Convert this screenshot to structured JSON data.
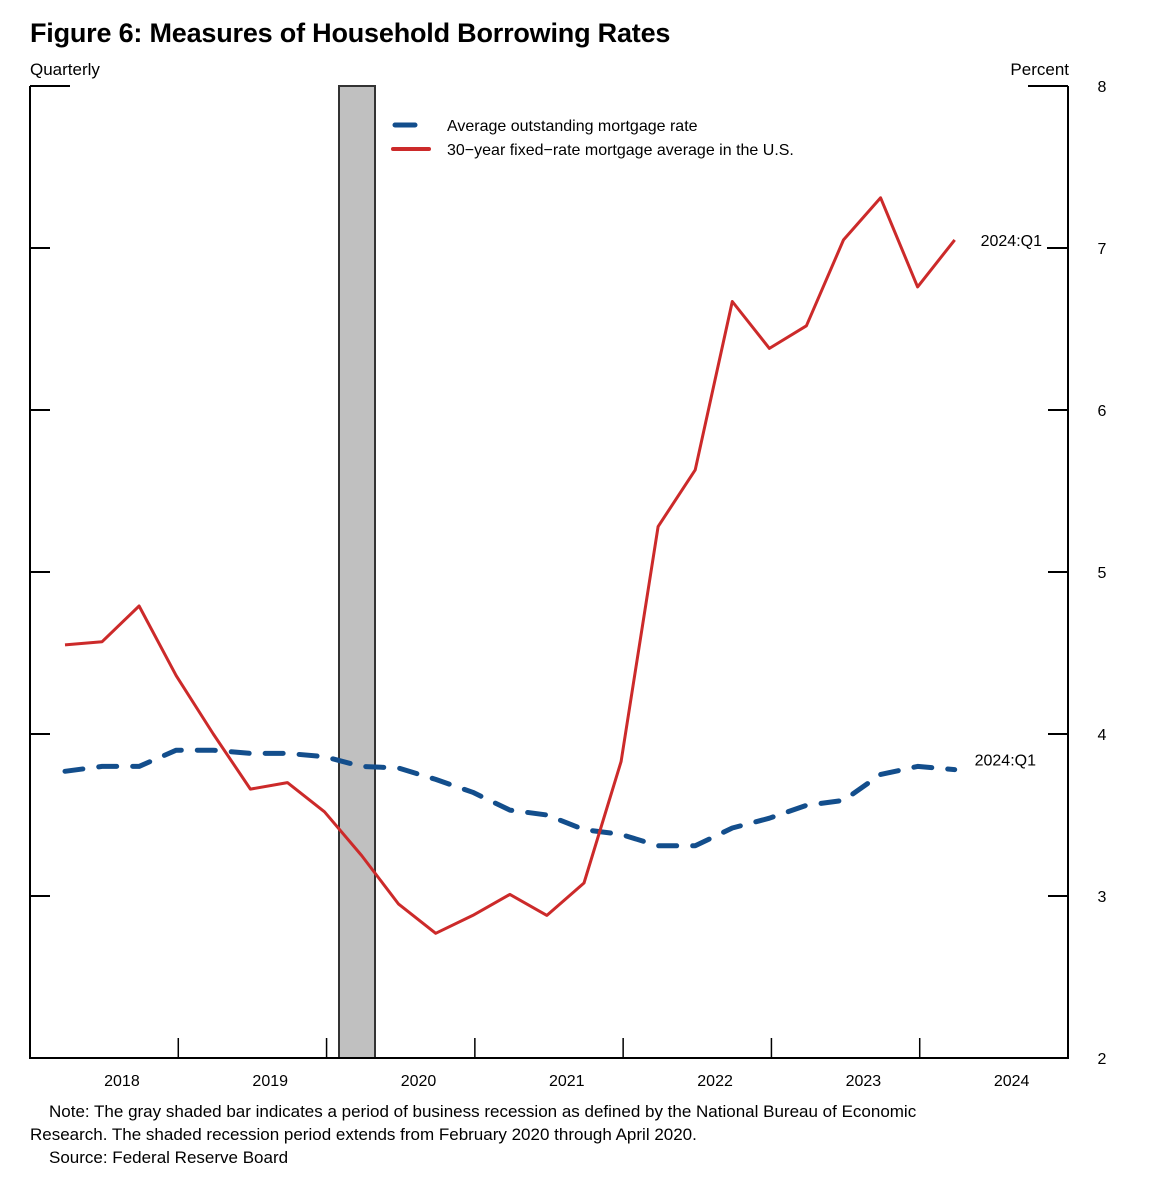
{
  "title": "Figure 6: Measures of Household Borrowing Rates",
  "frequency_label": "Quarterly",
  "unit_label": "Percent",
  "note_line1": "Note: The gray shaded bar indicates a period of business recession as defined by the National Bureau of Economic",
  "note_line2": "Research. The shaded recession period extends from February 2020 through April 2020.",
  "source": "Source: Federal Reserve Board",
  "chart_data": {
    "type": "line",
    "title": "Figure 6: Measures of Household Borrowing Rates",
    "xlabel": "",
    "ylabel": "Percent",
    "ylim": [
      2,
      8
    ],
    "y_ticks": [
      2,
      3,
      4,
      5,
      6,
      7,
      8
    ],
    "y_tick_labels": [
      "2",
      "3",
      "4",
      "5",
      "6",
      "7",
      "8"
    ],
    "x_tick_labels": [
      "2018",
      "2019",
      "2020",
      "2021",
      "2022",
      "2023",
      "2024"
    ],
    "x": [
      "2018:Q1",
      "2018:Q2",
      "2018:Q3",
      "2018:Q4",
      "2019:Q1",
      "2019:Q2",
      "2019:Q3",
      "2019:Q4",
      "2020:Q1",
      "2020:Q2",
      "2020:Q3",
      "2020:Q4",
      "2021:Q1",
      "2021:Q2",
      "2021:Q3",
      "2021:Q4",
      "2022:Q1",
      "2022:Q2",
      "2022:Q3",
      "2022:Q4",
      "2023:Q1",
      "2023:Q2",
      "2023:Q3",
      "2023:Q4",
      "2024:Q1"
    ],
    "grid": false,
    "legend_position": "top-center",
    "recession_shading": {
      "start": "February 2020",
      "end": "April 2020",
      "color": "#c0c0c0"
    },
    "series": [
      {
        "name": "Average outstanding mortgage rate",
        "color": "#134e8c",
        "style": "dashed",
        "end_label": "2024:Q1",
        "values": [
          3.77,
          3.8,
          3.8,
          3.9,
          3.9,
          3.88,
          3.88,
          3.86,
          3.8,
          3.79,
          3.72,
          3.64,
          3.53,
          3.5,
          3.41,
          3.38,
          3.31,
          3.31,
          3.42,
          3.48,
          3.56,
          3.59,
          3.75,
          3.8,
          3.78
        ]
      },
      {
        "name": "30−year fixed−rate mortgage average in the U.S.",
        "color": "#cc2a2a",
        "style": "solid",
        "end_label": "2024:Q1",
        "values": [
          4.55,
          4.57,
          4.79,
          4.36,
          4.0,
          3.66,
          3.7,
          3.52,
          3.25,
          2.95,
          2.77,
          2.88,
          3.01,
          2.88,
          3.08,
          3.83,
          5.28,
          5.63,
          6.67,
          6.38,
          6.52,
          7.05,
          7.31,
          6.76,
          7.05
        ]
      }
    ]
  }
}
